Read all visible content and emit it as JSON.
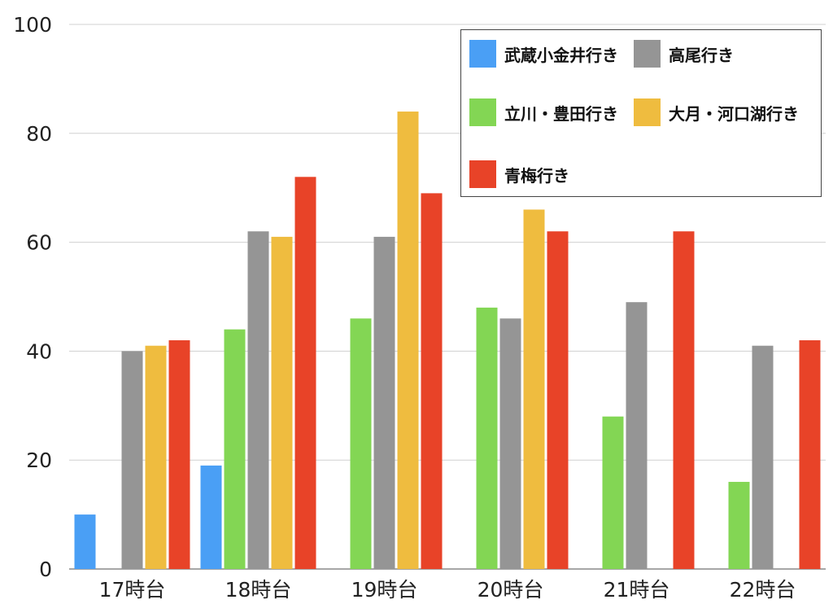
{
  "chart_data": {
    "type": "bar",
    "title": "",
    "xlabel": "",
    "ylabel": "",
    "ylim": [
      0,
      100
    ],
    "yticks": [
      0,
      20,
      40,
      60,
      80,
      100
    ],
    "grid": true,
    "legend_position": "top-right",
    "categories": [
      "17時台",
      "18時台",
      "19時台",
      "20時台",
      "21時台",
      "22時台"
    ],
    "series": [
      {
        "name": "武蔵小金井行き",
        "color": "#4a9ff5",
        "values": [
          10,
          19,
          null,
          null,
          null,
          null
        ]
      },
      {
        "name": "立川・豊田行き",
        "color": "#83d654",
        "values": [
          null,
          44,
          46,
          48,
          28,
          16
        ]
      },
      {
        "name": "高尾行き",
        "color": "#959595",
        "values": [
          40,
          62,
          61,
          46,
          49,
          41
        ]
      },
      {
        "name": "大月・河口湖行き",
        "color": "#efbc3f",
        "values": [
          41,
          61,
          84,
          66,
          null,
          null
        ]
      },
      {
        "name": "青梅行き",
        "color": "#e84328",
        "values": [
          42,
          72,
          69,
          62,
          62,
          42
        ]
      }
    ]
  }
}
